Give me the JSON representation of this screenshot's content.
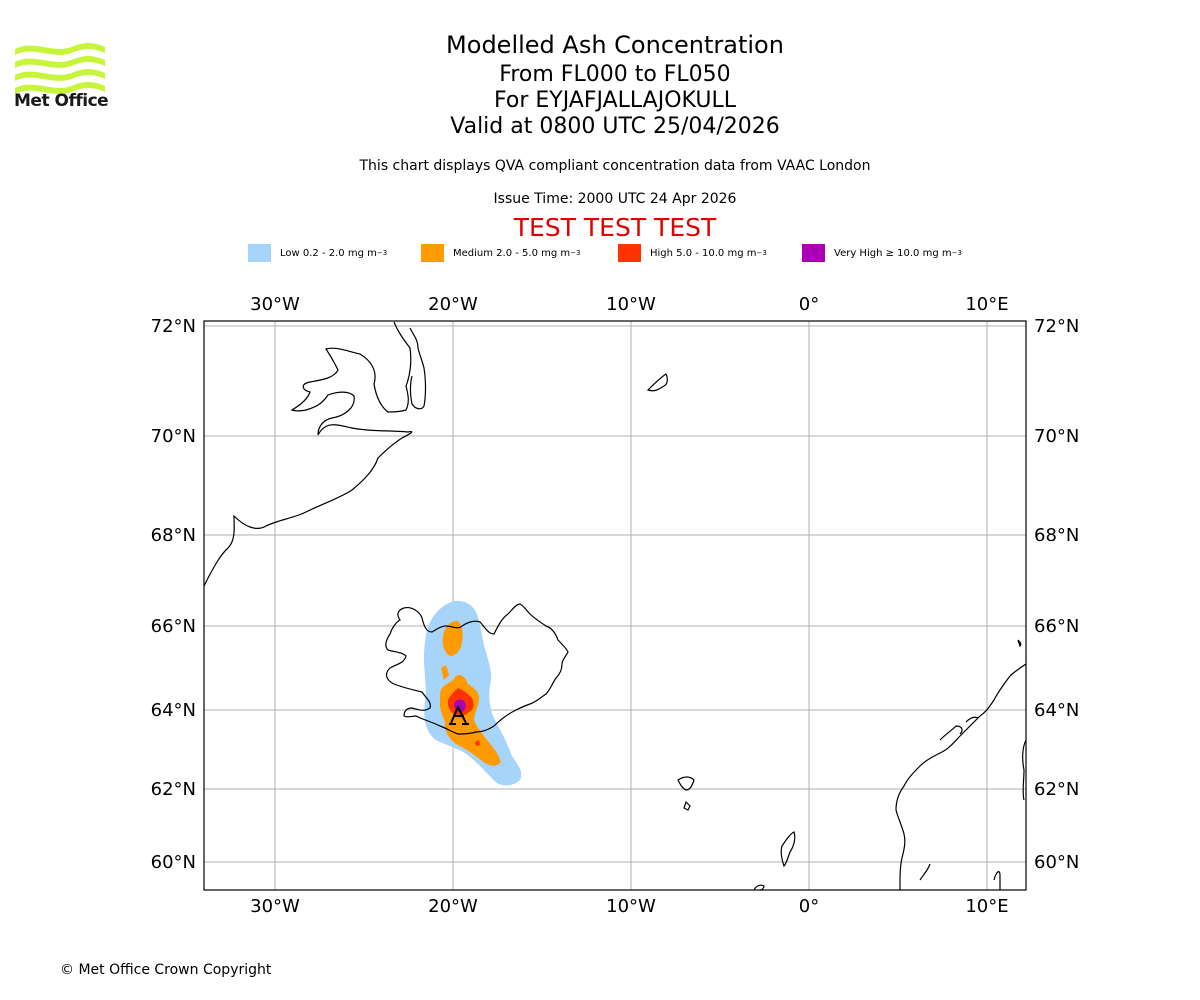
{
  "header": {
    "title": "Modelled Ash Concentration",
    "flight_levels": "From FL000 to FL050",
    "volcano": "For EYJAFJALLAJOKULL",
    "valid": "Valid at 0800 UTC 25/04/2026",
    "compliance": "This chart displays QVA compliant concentration data from VAAC London",
    "issue": "Issue Time: 2000 UTC 24 Apr 2026",
    "test_banner": "TEST TEST TEST"
  },
  "logo": {
    "text": "Met Office",
    "color": "#c8f53c"
  },
  "legend": [
    {
      "label": "Low 0.2 - 2.0 mg m",
      "unit_exp": "−3",
      "color": "#a6d4fa"
    },
    {
      "label": "Medium 2.0 - 5.0 mg m",
      "unit_exp": "−3",
      "color": "#ff9a00"
    },
    {
      "label": "High 5.0 - 10.0 mg m",
      "unit_exp": "−3",
      "color": "#ff3300"
    },
    {
      "label": "Very High ≥ 10.0 mg m",
      "unit_exp": "−3",
      "color": "#aa00b4"
    }
  ],
  "axes": {
    "lon_labels": [
      "30°W",
      "20°W",
      "10°W",
      "0°",
      "10°E"
    ],
    "lat_labels": [
      "72°N",
      "70°N",
      "68°N",
      "66°N",
      "64°N",
      "62°N",
      "60°N"
    ]
  },
  "map": {
    "volcano_name": "EYJAFJALLAJOKULL",
    "volcano_lat": 63.63,
    "volcano_lon": -19.62,
    "test_color": "#e00000"
  },
  "footer": {
    "copyright": "© Met Office Crown Copyright"
  }
}
